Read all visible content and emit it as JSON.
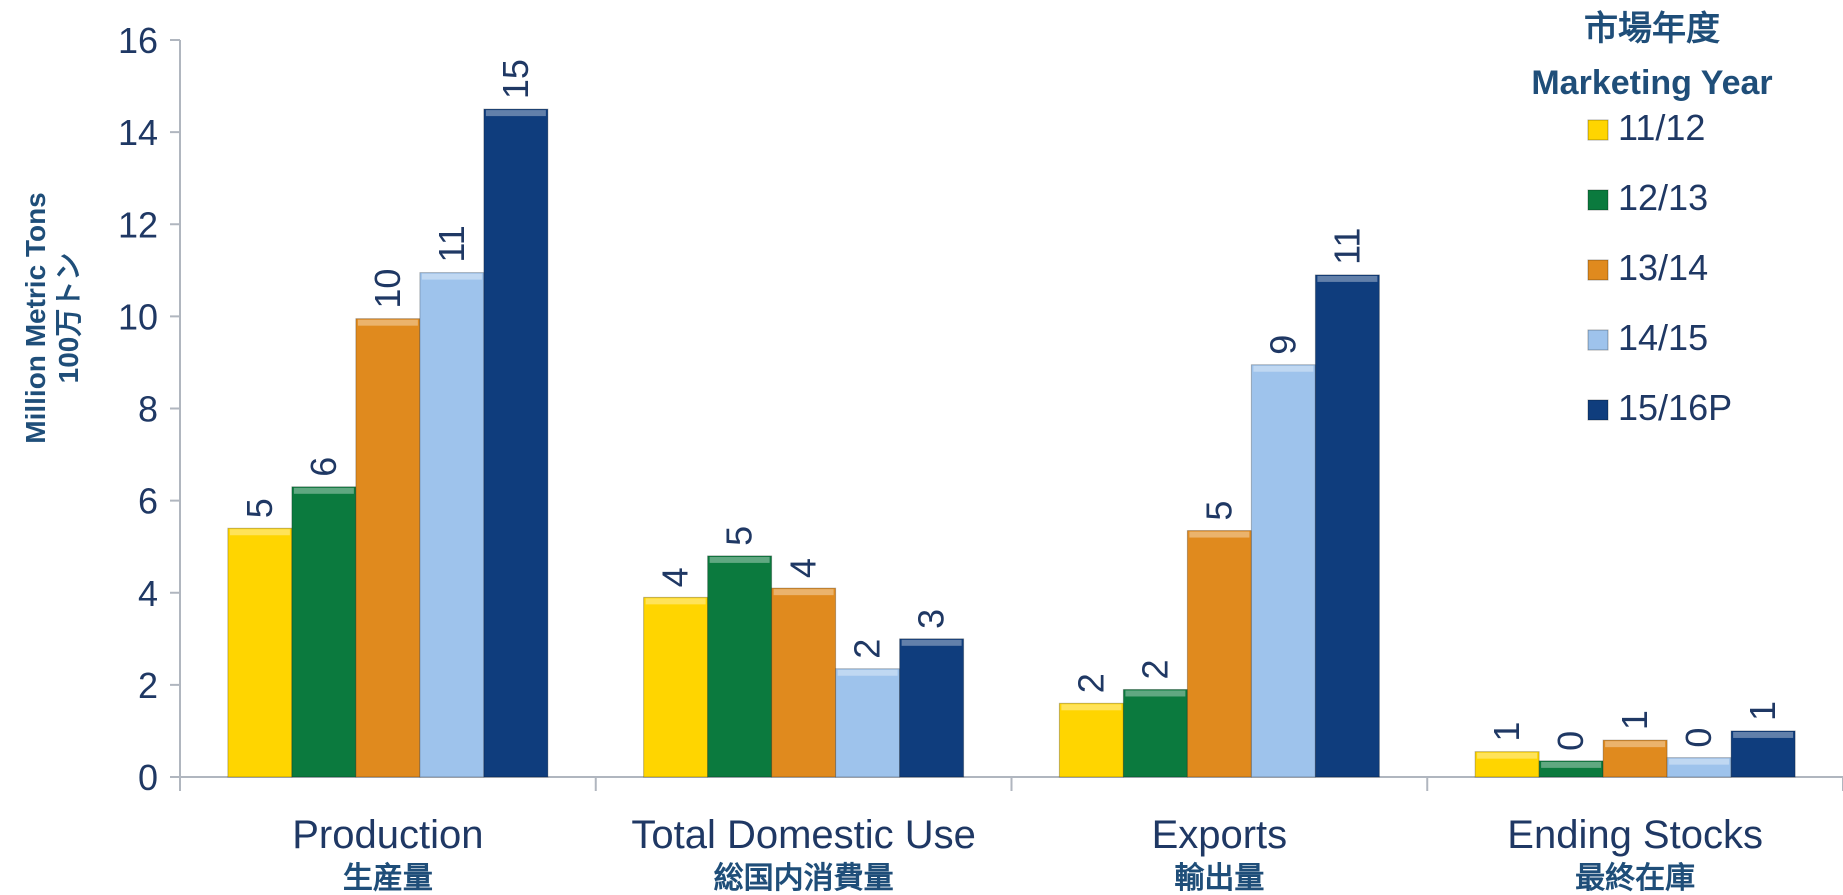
{
  "chart_data": {
    "type": "bar",
    "ylabel": "Million Metric Tons",
    "ylabel_jp": "100万トン",
    "ylim": [
      0,
      16
    ],
    "yticks": [
      0,
      2,
      4,
      6,
      8,
      10,
      12,
      14,
      16
    ],
    "grid": false,
    "legend_position": "top-right",
    "legend_title": "市場年度",
    "legend_title_en": "Marketing Year",
    "categories": [
      "Production",
      "Total Domestic Use",
      "Exports",
      "Ending Stocks"
    ],
    "categories_jp": [
      "生産量",
      "総国内消費量",
      "輸出量",
      "最終在庫"
    ],
    "series": [
      {
        "name": "11/12",
        "color": "#ffd500",
        "values": [
          5.4,
          3.9,
          1.6,
          0.55
        ],
        "labels": [
          "5",
          "4",
          "2",
          "1"
        ]
      },
      {
        "name": "12/13",
        "color": "#0b7a3e",
        "values": [
          6.3,
          4.8,
          1.9,
          0.35
        ],
        "labels": [
          "6",
          "5",
          "2",
          "0"
        ]
      },
      {
        "name": "13/14",
        "color": "#e08a1e",
        "values": [
          9.95,
          4.1,
          5.35,
          0.8
        ],
        "labels": [
          "10",
          "4",
          "5",
          "1"
        ]
      },
      {
        "name": "14/15",
        "color": "#9ec3ec",
        "values": [
          10.95,
          2.35,
          8.95,
          0.42
        ],
        "labels": [
          "11",
          "2",
          "9",
          "0"
        ]
      },
      {
        "name": "15/16P",
        "color": "#0f3d7d",
        "values": [
          14.5,
          3.0,
          10.9,
          1.0
        ],
        "labels": [
          "15",
          "3",
          "11",
          "1"
        ]
      }
    ]
  }
}
